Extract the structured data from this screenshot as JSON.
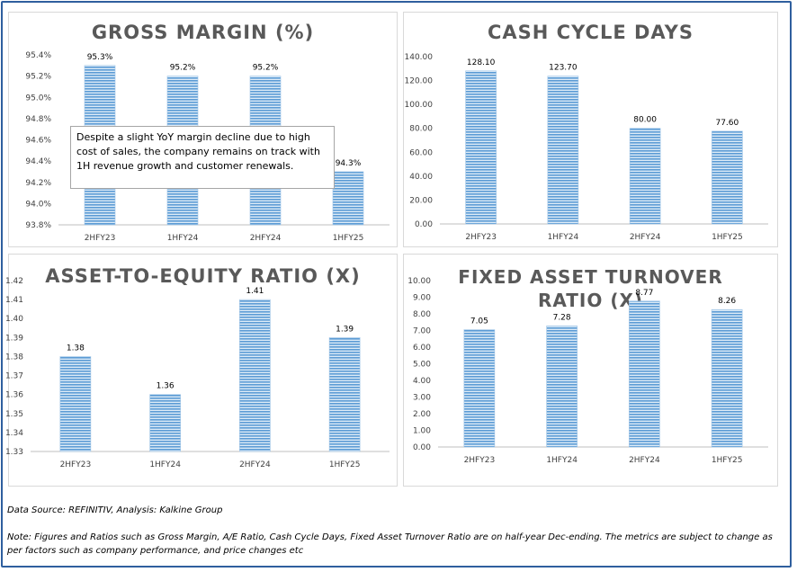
{
  "charts": [
    {
      "title": "GROSS MARGIN (%)",
      "chart_data": {
        "type": "bar",
        "title": "GROSS MARGIN (%)",
        "categories": [
          "2HFY23",
          "1HFY24",
          "2HFY24",
          "1HFY25"
        ],
        "values": [
          95.3,
          95.2,
          95.2,
          94.3
        ],
        "value_labels": [
          "95.3%",
          "95.2%",
          "95.2%",
          "94.3%"
        ],
        "ylim": [
          93.8,
          95.4
        ],
        "yticks": [
          "93.8%",
          "94.0%",
          "94.2%",
          "94.4%",
          "94.6%",
          "94.8%",
          "95.0%",
          "95.2%",
          "95.4%"
        ],
        "ytick_values": [
          93.8,
          94.0,
          94.2,
          94.4,
          94.6,
          94.8,
          95.0,
          95.2,
          95.4
        ],
        "grid": false,
        "bar_color": "#5b9bd5"
      }
    },
    {
      "title": "CASH CYCLE DAYS",
      "chart_data": {
        "type": "bar",
        "title": "CASH CYCLE DAYS",
        "categories": [
          "2HFY23",
          "1HFY24",
          "2HFY24",
          "1HFY25"
        ],
        "values": [
          128.1,
          123.7,
          80.0,
          77.6
        ],
        "value_labels": [
          "128.10",
          "123.70",
          "80.00",
          "77.60"
        ],
        "ylim": [
          0,
          140
        ],
        "yticks": [
          "0.00",
          "20.00",
          "40.00",
          "60.00",
          "80.00",
          "100.00",
          "120.00",
          "140.00"
        ],
        "ytick_values": [
          0,
          20,
          40,
          60,
          80,
          100,
          120,
          140
        ],
        "grid": false,
        "bar_color": "#5b9bd5"
      }
    },
    {
      "title": "ASSET-TO-EQUITY RATIO (X)",
      "chart_data": {
        "type": "bar",
        "title": "ASSET-TO-EQUITY RATIO (X)",
        "categories": [
          "2HFY23",
          "1HFY24",
          "2HFY24",
          "1HFY25"
        ],
        "values": [
          1.38,
          1.36,
          1.41,
          1.39
        ],
        "value_labels": [
          "1.38",
          "1.36",
          "1.41",
          "1.39"
        ],
        "ylim": [
          1.33,
          1.42
        ],
        "yticks": [
          "1.33",
          "1.34",
          "1.35",
          "1.36",
          "1.37",
          "1.38",
          "1.39",
          "1.40",
          "1.41",
          "1.42"
        ],
        "ytick_values": [
          1.33,
          1.34,
          1.35,
          1.36,
          1.37,
          1.38,
          1.39,
          1.4,
          1.41,
          1.42
        ],
        "grid": false,
        "bar_color": "#5b9bd5"
      }
    },
    {
      "title": "FIXED ASSET TURNOVER RATIO (X)",
      "chart_data": {
        "type": "bar",
        "title": "FIXED ASSET TURNOVER RATIO (X)",
        "categories": [
          "2HFY23",
          "1HFY24",
          "2HFY24",
          "1HFY25"
        ],
        "values": [
          7.05,
          7.28,
          8.77,
          8.26
        ],
        "value_labels": [
          "7.05",
          "7.28",
          "8.77",
          "8.26"
        ],
        "ylim": [
          0,
          10
        ],
        "yticks": [
          "0.00",
          "1.00",
          "2.00",
          "3.00",
          "4.00",
          "5.00",
          "6.00",
          "7.00",
          "8.00",
          "9.00",
          "10.00"
        ],
        "ytick_values": [
          0,
          1,
          2,
          3,
          4,
          5,
          6,
          7,
          8,
          9,
          10
        ],
        "grid": false,
        "bar_color": "#5b9bd5"
      }
    }
  ],
  "callout": "Despite a slight YoY margin decline due to high cost of sales, the company remains on track with 1H revenue growth and customer renewals.",
  "footer": {
    "source": "Data Source: REFINITIV, Analysis: Kalkine Group",
    "note": "Note: Figures and Ratios such as Gross Margin, A/E Ratio, Cash Cycle Days, Fixed Asset Turnover Ratio  are on half-year Dec-ending. The metrics are subject to change as per factors such as company performance, and price changes etc"
  }
}
